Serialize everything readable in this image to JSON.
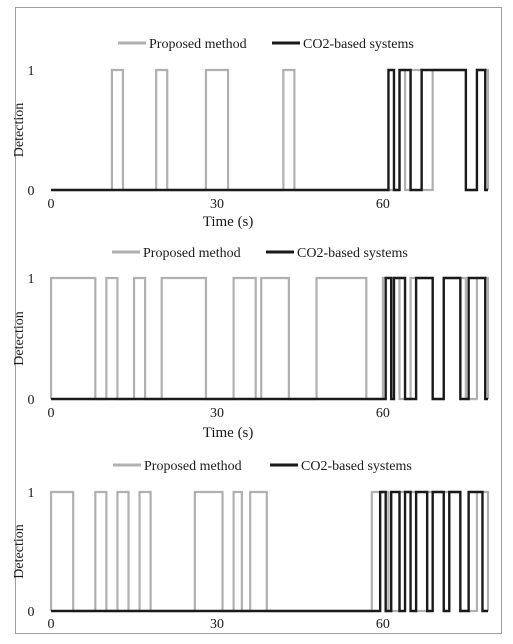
{
  "chart_data": [
    {
      "type": "line",
      "step": true,
      "xlabel": "Time (s)",
      "ylabel": "Detection",
      "xticks": [
        "0",
        "30",
        "60"
      ],
      "yticks": [
        "0",
        "1"
      ],
      "xlim": [
        -2,
        79
      ],
      "ylim": [
        0,
        1
      ],
      "grid": false,
      "legend_position": "top",
      "series": [
        {
          "name": "Proposed method",
          "color": "#b0b0b0",
          "pulses": [
            [
              11,
              13
            ],
            [
              19,
              21
            ],
            [
              28,
              32
            ],
            [
              42,
              44
            ],
            [
              63,
              64
            ],
            [
              65,
              67
            ],
            [
              69,
              75
            ],
            [
              77,
              79
            ]
          ]
        },
        {
          "name": "CO2-based systems",
          "color": "#1a1a1a",
          "pulses": [
            [
              61,
              62
            ],
            [
              63,
              65
            ],
            [
              67,
              75
            ],
            [
              77,
              78.5
            ]
          ]
        }
      ]
    },
    {
      "type": "line",
      "step": true,
      "xlabel": "Time (s)",
      "ylabel": "Detection",
      "xticks": [
        "0",
        "30",
        "60"
      ],
      "yticks": [
        "0",
        "1"
      ],
      "xlim": [
        -2,
        79
      ],
      "ylim": [
        0,
        1
      ],
      "grid": false,
      "legend_position": "top",
      "series": [
        {
          "name": "Proposed method",
          "color": "#b0b0b0",
          "pulses": [
            [
              0,
              8
            ],
            [
              10,
              12
            ],
            [
              15,
              17
            ],
            [
              20,
              28
            ],
            [
              33,
              37
            ],
            [
              38,
              43
            ],
            [
              48,
              57
            ],
            [
              60,
              63
            ],
            [
              65,
              69
            ],
            [
              71,
              75
            ],
            [
              77,
              79
            ]
          ]
        },
        {
          "name": "CO2-based systems",
          "color": "#1a1a1a",
          "pulses": [
            [
              60.5,
              61.5
            ],
            [
              62,
              64
            ],
            [
              66,
              69
            ],
            [
              71,
              74
            ],
            [
              75.5,
              78.5
            ]
          ]
        }
      ]
    },
    {
      "type": "line",
      "step": true,
      "xlabel": "",
      "ylabel": "Detection",
      "xticks": [
        "0",
        "30",
        "60"
      ],
      "yticks": [
        "0",
        "1"
      ],
      "xlim": [
        -2,
        79
      ],
      "ylim": [
        0,
        1
      ],
      "grid": false,
      "legend_position": "top",
      "series": [
        {
          "name": "Proposed method",
          "color": "#b0b0b0",
          "pulses": [
            [
              0,
              4
            ],
            [
              8,
              10
            ],
            [
              12,
              14
            ],
            [
              16,
              18
            ],
            [
              26,
              31
            ],
            [
              33,
              34.5
            ],
            [
              36,
              39
            ],
            [
              58,
              61
            ],
            [
              63,
              66
            ],
            [
              68,
              74
            ],
            [
              77,
              79
            ]
          ]
        },
        {
          "name": "CO2-based systems",
          "color": "#1a1a1a",
          "pulses": [
            [
              59.5,
              60.5
            ],
            [
              61.5,
              63
            ],
            [
              64,
              65
            ],
            [
              66,
              68
            ],
            [
              69,
              71
            ],
            [
              72,
              74
            ],
            [
              75.5,
              78
            ]
          ]
        }
      ]
    }
  ]
}
